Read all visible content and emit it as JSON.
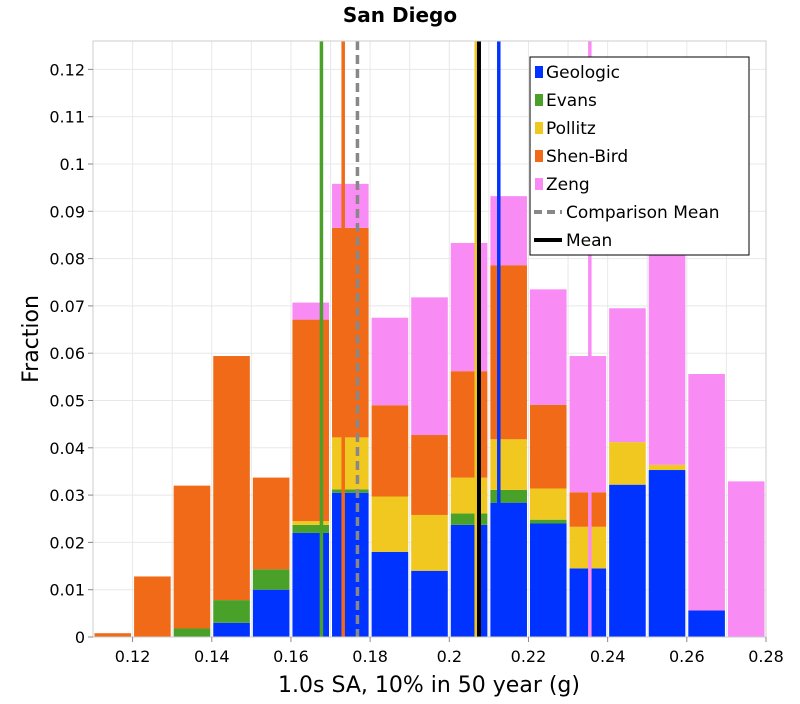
{
  "chart_data": {
    "type": "bar",
    "stacked": true,
    "title": "San Diego",
    "xlabel": "1.0s SA, 10% in 50 year (g)",
    "ylabel": "Fraction",
    "xlim": [
      0.11,
      0.28
    ],
    "ylim": [
      0,
      0.126
    ],
    "x_ticks": [
      0.12,
      0.14,
      0.16,
      0.18,
      0.2,
      0.22,
      0.24,
      0.26,
      0.28
    ],
    "x_tick_labels": [
      "0.12",
      "0.14",
      "0.16",
      "0.18",
      "0.2",
      "0.22",
      "0.24",
      "0.26",
      "0.28"
    ],
    "y_ticks": [
      0,
      0.01,
      0.02,
      0.03,
      0.04,
      0.05,
      0.06,
      0.07,
      0.08,
      0.09,
      0.1,
      0.11,
      0.12
    ],
    "y_tick_labels": [
      "0",
      "0.01",
      "0.02",
      "0.03",
      "0.04",
      "0.05",
      "0.06",
      "0.07",
      "0.08",
      "0.09",
      "0.1",
      "0.11",
      "0.12"
    ],
    "grid": true,
    "legend_position": "top-right",
    "bin_width": 0.01,
    "bin_centers": [
      0.115,
      0.125,
      0.135,
      0.145,
      0.155,
      0.165,
      0.175,
      0.185,
      0.195,
      0.205,
      0.215,
      0.225,
      0.235,
      0.245,
      0.255,
      0.265,
      0.275
    ],
    "series": [
      {
        "name": "Geologic",
        "color": "#0033ff",
        "values": [
          0,
          0,
          0,
          0.003,
          0.01,
          0.022,
          0.0305,
          0.018,
          0.014,
          0.0237,
          0.0284,
          0.024,
          0.0145,
          0.0322,
          0.0353,
          0.0056,
          0
        ]
      },
      {
        "name": "Evans",
        "color": "#4aa12a",
        "values": [
          0,
          0,
          0.0018,
          0.0048,
          0.0043,
          0.0017,
          0.0007,
          0,
          0,
          0.0024,
          0.0027,
          0.0008,
          0,
          0,
          0,
          0,
          0
        ]
      },
      {
        "name": "Pollitz",
        "color": "#f0c820",
        "values": [
          0,
          0,
          0,
          0,
          0,
          0.0008,
          0.011,
          0.0117,
          0.0118,
          0.0076,
          0.0107,
          0.0066,
          0.0088,
          0.009,
          0.0011,
          0,
          0
        ]
      },
      {
        "name": "Shen-Bird",
        "color": "#f06a18",
        "values": [
          0.0008,
          0.0128,
          0.0302,
          0.0516,
          0.0194,
          0.0426,
          0.0443,
          0.0193,
          0.0169,
          0.0225,
          0.0368,
          0.0177,
          0.0073,
          0,
          0,
          0,
          0
        ]
      },
      {
        "name": "Zeng",
        "color": "#f98bf5",
        "values": [
          0,
          0,
          0,
          0,
          0,
          0.0036,
          0.0093,
          0.0185,
          0.0291,
          0.0271,
          0.0146,
          0.0244,
          0.0288,
          0.0283,
          0.0536,
          0.05,
          0.0329
        ]
      }
    ],
    "vertical_lines": [
      {
        "series": "Geologic",
        "x": 0.2125,
        "color": "#0033ff",
        "style": "solid"
      },
      {
        "series": "Evans",
        "x": 0.1677,
        "color": "#4aa12a",
        "style": "solid"
      },
      {
        "series": "Pollitz",
        "x": 0.2068,
        "color": "#f0c820",
        "style": "solid"
      },
      {
        "series": "Shen-Bird",
        "x": 0.1732,
        "color": "#f06a18",
        "style": "solid"
      },
      {
        "series": "Zeng",
        "x": 0.2355,
        "color": "#f98bf5",
        "style": "solid"
      },
      {
        "series": "Comparison Mean",
        "x": 0.1768,
        "color": "#888888",
        "style": "dashed"
      },
      {
        "series": "Mean",
        "x": 0.2075,
        "color": "#000000",
        "style": "solid"
      }
    ],
    "legend": [
      {
        "label": "Geologic",
        "color": "#0033ff",
        "kind": "box"
      },
      {
        "label": "Evans",
        "color": "#4aa12a",
        "kind": "box"
      },
      {
        "label": "Pollitz",
        "color": "#f0c820",
        "kind": "box"
      },
      {
        "label": "Shen-Bird",
        "color": "#f06a18",
        "kind": "box"
      },
      {
        "label": "Zeng",
        "color": "#f98bf5",
        "kind": "box"
      },
      {
        "label": "Comparison Mean",
        "color": "#888888",
        "kind": "dashed"
      },
      {
        "label": "Mean",
        "color": "#000000",
        "kind": "line"
      }
    ]
  }
}
